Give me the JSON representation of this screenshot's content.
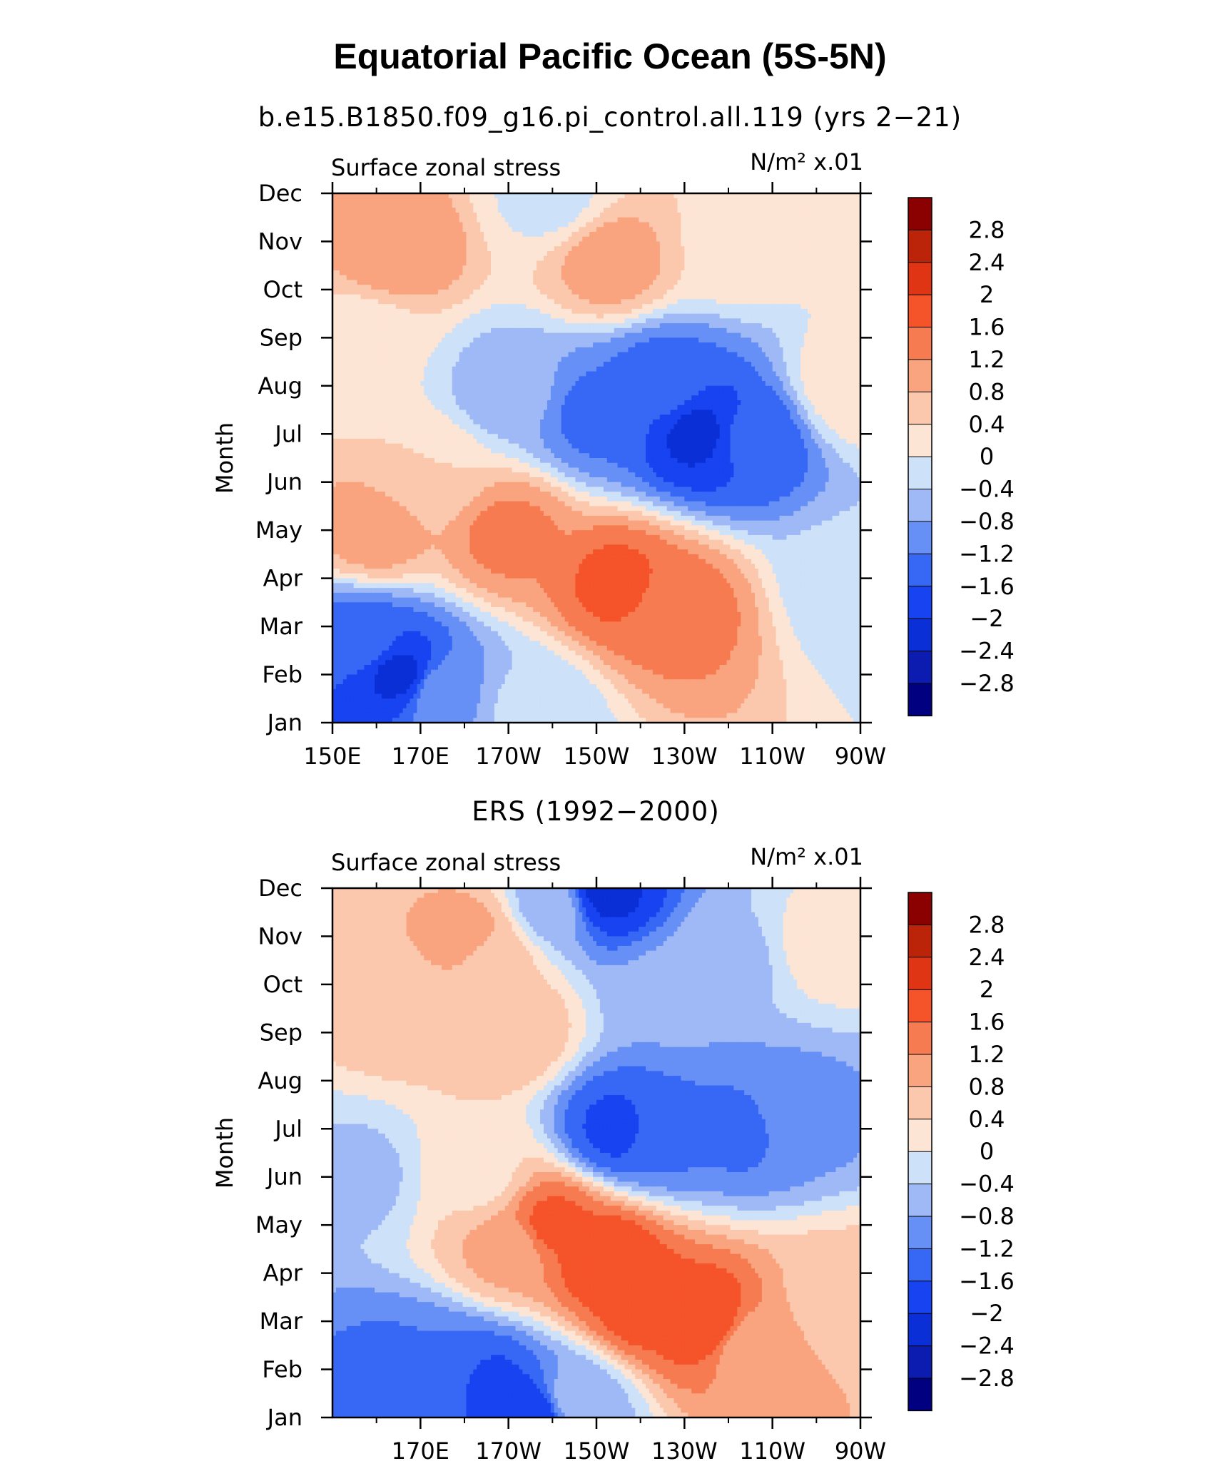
{
  "chart_data": [
    {
      "type": "heatmap",
      "kind": "filled-contour",
      "figure_title": "Equatorial Pacific Ocean (5S-5N)",
      "title": "b.e15.B1850.f09_g16.pi_control.all.119 (yrs 2−21)",
      "left_label": "Surface zonal stress",
      "right_label": "N/m² x.01",
      "ylabel": "Month",
      "x_ticks": [
        "150E",
        "170E",
        "170W",
        "150W",
        "130W",
        "110W",
        "90W"
      ],
      "y_ticks": [
        "Jan",
        "Feb",
        "Mar",
        "Apr",
        "May",
        "Jun",
        "Jul",
        "Aug",
        "Sep",
        "Oct",
        "Nov",
        "Dec"
      ],
      "xlim": [
        150,
        270
      ],
      "ylim": [
        1,
        12
      ],
      "colorbar": {
        "levels": [
          "2.8",
          "2.4",
          "2",
          "1.6",
          "1.2",
          "0.8",
          "0.4",
          "0",
          "−0.4",
          "−0.8",
          "−1.2",
          "−1.6",
          "−2",
          "−2.4",
          "−2.8"
        ]
      },
      "features": [
        {
          "lon": 165,
          "month": 2.0,
          "value": -2.1
        },
        {
          "lon": 157,
          "month": 2.7,
          "value": -1.4
        },
        {
          "lon": 175,
          "month": 1.6,
          "value": -0.9
        },
        {
          "lon": 195,
          "month": 1.3,
          "value": -0.3
        },
        {
          "lon": 228,
          "month": 3.4,
          "value": 1.4
        },
        {
          "lon": 215,
          "month": 3.9,
          "value": 1.7
        },
        {
          "lon": 190,
          "month": 4.9,
          "value": 1.3
        },
        {
          "lon": 160,
          "month": 5.0,
          "value": 1.0
        },
        {
          "lon": 172,
          "month": 6.2,
          "value": 0.4
        },
        {
          "lon": 245,
          "month": 6.9,
          "value": -1.5
        },
        {
          "lon": 233,
          "month": 7.0,
          "value": -2.1
        },
        {
          "lon": 210,
          "month": 7.4,
          "value": -1.3
        },
        {
          "lon": 225,
          "month": 8.0,
          "value": -1.4
        },
        {
          "lon": 190,
          "month": 7.9,
          "value": -0.6
        },
        {
          "lon": 157,
          "month": 8.8,
          "value": 0.1
        },
        {
          "lon": 268,
          "month": 8.0,
          "value": 0.3
        },
        {
          "lon": 165,
          "month": 10.9,
          "value": 1.1
        },
        {
          "lon": 213,
          "month": 10.6,
          "value": 1.0
        },
        {
          "lon": 242,
          "month": 11.0,
          "value": 0.3
        },
        {
          "lon": 200,
          "month": 11.9,
          "value": -0.1
        },
        {
          "lon": 268,
          "month": 4.0,
          "value": -0.3
        }
      ]
    },
    {
      "type": "heatmap",
      "kind": "filled-contour",
      "title": "ERS (1992−2000)",
      "left_label": "Surface zonal stress",
      "right_label": "N/m² x.01",
      "ylabel": "Month",
      "x_ticks": [
        "170E",
        "170W",
        "150W",
        "130W",
        "110W",
        "90W"
      ],
      "y_ticks": [
        "Jan",
        "Feb",
        "Mar",
        "Apr",
        "May",
        "Jun",
        "Jul",
        "Aug",
        "Sep",
        "Oct",
        "Nov",
        "Dec"
      ],
      "xlim": [
        150,
        270
      ],
      "ylim": [
        1,
        12
      ],
      "colorbar": {
        "levels": [
          "2.8",
          "2.4",
          "2",
          "1.6",
          "1.2",
          "0.8",
          "0.4",
          "0",
          "−0.4",
          "−0.8",
          "−1.2",
          "−1.6",
          "−2",
          "−2.4",
          "−2.8"
        ]
      },
      "features": [
        {
          "lon": 163,
          "month": 1.9,
          "value": -1.3
        },
        {
          "lon": 185,
          "month": 1.7,
          "value": -1.7
        },
        {
          "lon": 195,
          "month": 1.1,
          "value": -2.0
        },
        {
          "lon": 176,
          "month": 2.0,
          "value": -1.2
        },
        {
          "lon": 205,
          "month": 1.4,
          "value": -0.6
        },
        {
          "lon": 220,
          "month": 3.3,
          "value": 1.8
        },
        {
          "lon": 235,
          "month": 3.0,
          "value": 2.0
        },
        {
          "lon": 212,
          "month": 4.3,
          "value": 2.0
        },
        {
          "lon": 200,
          "month": 5.0,
          "value": 1.7
        },
        {
          "lon": 190,
          "month": 4.5,
          "value": 0.9
        },
        {
          "lon": 245,
          "month": 2.5,
          "value": 0.9
        },
        {
          "lon": 183,
          "month": 6.0,
          "value": 0.3
        },
        {
          "lon": 156,
          "month": 6.0,
          "value": -0.5
        },
        {
          "lon": 225,
          "month": 6.9,
          "value": -1.3
        },
        {
          "lon": 243,
          "month": 7.0,
          "value": -1.3
        },
        {
          "lon": 215,
          "month": 7.0,
          "value": -1.7
        },
        {
          "lon": 255,
          "month": 7.3,
          "value": -0.9
        },
        {
          "lon": 165,
          "month": 9.5,
          "value": 0.6
        },
        {
          "lon": 186,
          "month": 10.6,
          "value": 0.6
        },
        {
          "lon": 190,
          "month": 9.1,
          "value": 0.8
        },
        {
          "lon": 181,
          "month": 11.0,
          "value": 1.0
        },
        {
          "lon": 227,
          "month": 9.9,
          "value": -0.7
        },
        {
          "lon": 241,
          "month": 10.5,
          "value": -0.5
        },
        {
          "lon": 212,
          "month": 11.9,
          "value": -2.1
        },
        {
          "lon": 200,
          "month": 11.6,
          "value": -0.6
        },
        {
          "lon": 164,
          "month": 11.9,
          "value": 0.8
        },
        {
          "lon": 262,
          "month": 10.8,
          "value": 0.2
        },
        {
          "lon": 265,
          "month": 3.5,
          "value": 0.6
        }
      ]
    }
  ],
  "palette": {
    "levels": [
      -3.2,
      -2.8,
      -2.4,
      -2.0,
      -1.6,
      -1.2,
      -0.8,
      -0.4,
      0,
      0.4,
      0.8,
      1.2,
      1.6,
      2.0,
      2.4,
      2.8,
      3.2
    ],
    "colors": [
      "#000080",
      "#0C1CB0",
      "#0A2FD6",
      "#1843F0",
      "#3668F5",
      "#6690F5",
      "#9FB9F7",
      "#CDE1F9",
      "#FDE5D5",
      "#FBC8AD",
      "#F9A47F",
      "#F77B50",
      "#F5532A",
      "#E03514",
      "#BB2408",
      "#8B0000"
    ]
  }
}
